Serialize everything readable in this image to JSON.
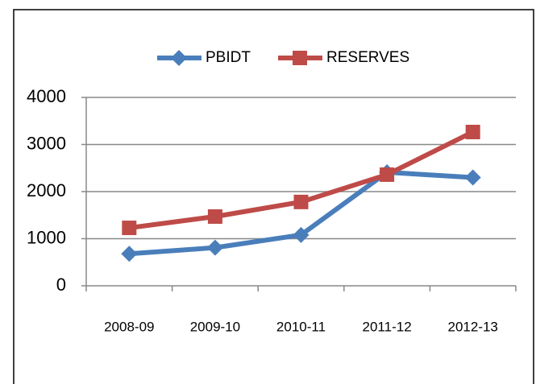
{
  "chart_data": {
    "type": "line",
    "categories": [
      "2008-09",
      "2009-10",
      "2010-11",
      "2011-12",
      "2012-13"
    ],
    "series": [
      {
        "name": "PBIDT",
        "color": "#4a7ebb",
        "marker": "diamond",
        "values": [
          680,
          810,
          1080,
          2410,
          2300
        ]
      },
      {
        "name": "RESERVES",
        "color": "#be4b48",
        "marker": "square",
        "values": [
          1230,
          1470,
          1780,
          2360,
          3265
        ]
      }
    ],
    "ylim": [
      0,
      4000
    ],
    "yticks": [
      0,
      1000,
      2000,
      3000,
      4000
    ],
    "grid": true,
    "legend": "top"
  }
}
